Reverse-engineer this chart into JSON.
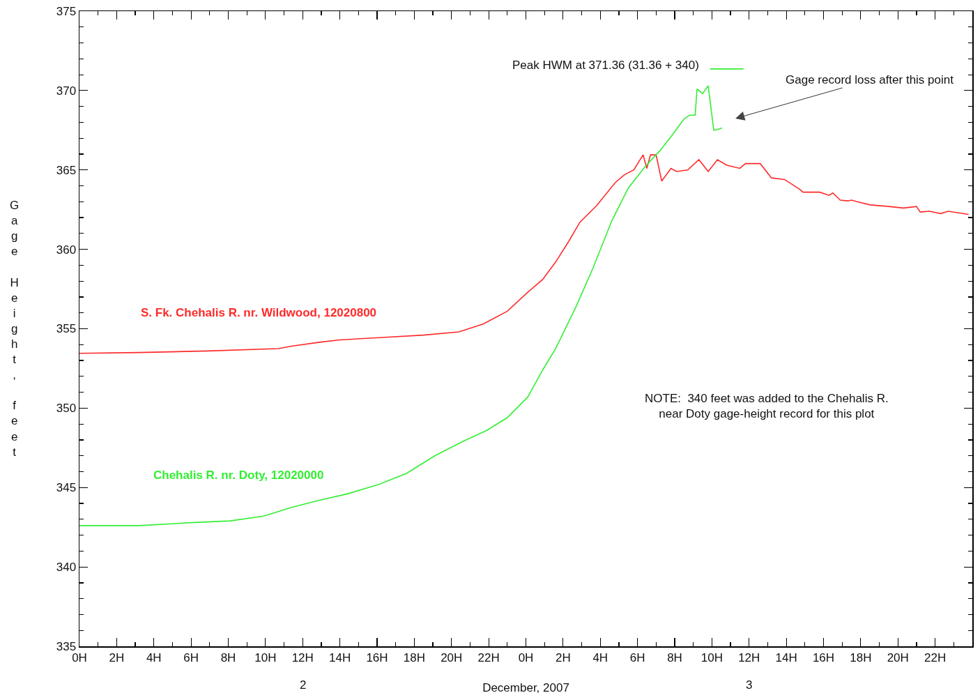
{
  "chart_data": {
    "type": "line",
    "xlabel": "December, 2007",
    "ylabel": "Gage Height, feet",
    "xlim": [
      "2007-12-02T00:00",
      "2007-12-04T00:00"
    ],
    "ylim": [
      335,
      375
    ],
    "xticks": [
      {
        "value": "2007-12-02T00:00",
        "label": "0H"
      },
      {
        "value": "2007-12-02T02:00",
        "label": "2H"
      },
      {
        "value": "2007-12-02T04:00",
        "label": "4H"
      },
      {
        "value": "2007-12-02T06:00",
        "label": "6H"
      },
      {
        "value": "2007-12-02T08:00",
        "label": "8H"
      },
      {
        "value": "2007-12-02T10:00",
        "label": "10H"
      },
      {
        "value": "2007-12-02T12:00",
        "label": "12H"
      },
      {
        "value": "2007-12-02T14:00",
        "label": "14H"
      },
      {
        "value": "2007-12-02T16:00",
        "label": "16H"
      },
      {
        "value": "2007-12-02T18:00",
        "label": "18H"
      },
      {
        "value": "2007-12-02T20:00",
        "label": "20H"
      },
      {
        "value": "2007-12-02T22:00",
        "label": "22H"
      },
      {
        "value": "2007-12-03T00:00",
        "label": "0H"
      },
      {
        "value": "2007-12-03T02:00",
        "label": "2H"
      },
      {
        "value": "2007-12-03T04:00",
        "label": "4H"
      },
      {
        "value": "2007-12-03T06:00",
        "label": "6H"
      },
      {
        "value": "2007-12-03T08:00",
        "label": "8H"
      },
      {
        "value": "2007-12-03T10:00",
        "label": "10H"
      },
      {
        "value": "2007-12-03T12:00",
        "label": "12H"
      },
      {
        "value": "2007-12-03T14:00",
        "label": "14H"
      },
      {
        "value": "2007-12-03T16:00",
        "label": "16H"
      },
      {
        "value": "2007-12-03T18:00",
        "label": "18H"
      },
      {
        "value": "2007-12-03T20:00",
        "label": "20H"
      },
      {
        "value": "2007-12-03T22:00",
        "label": "22H"
      }
    ],
    "yticks": [
      335,
      340,
      345,
      350,
      355,
      360,
      365,
      370,
      375
    ],
    "grid": false,
    "legend": false,
    "marker": "none",
    "line_style": "solid",
    "series": [
      {
        "name": "S. Fk. Chehalis R. nr. Wildwood, 12020800",
        "color": "#ff2a2a",
        "x": [
          "2007-12-02T00:00",
          "2007-12-02T03:12",
          "2007-12-02T06:54",
          "2007-12-02T10:42",
          "2007-12-02T11:24",
          "2007-12-02T12:54",
          "2007-12-02T14:00",
          "2007-12-02T16:18",
          "2007-12-02T18:30",
          "2007-12-02T20:24",
          "2007-12-02T21:42",
          "2007-12-02T23:00",
          "2007-12-03T00:06",
          "2007-12-03T00:54",
          "2007-12-03T01:36",
          "2007-12-03T02:18",
          "2007-12-03T02:54",
          "2007-12-03T03:48",
          "2007-12-03T04:48",
          "2007-12-03T05:18",
          "2007-12-03T05:48",
          "2007-12-03T06:18",
          "2007-12-03T06:30",
          "2007-12-03T06:42",
          "2007-12-03T07:00",
          "2007-12-03T07:18",
          "2007-12-03T07:48",
          "2007-12-03T08:06",
          "2007-12-03T08:42",
          "2007-12-03T09:18",
          "2007-12-03T09:48",
          "2007-12-03T10:18",
          "2007-12-03T10:48",
          "2007-12-03T11:30",
          "2007-12-03T11:48",
          "2007-12-03T12:36",
          "2007-12-03T13:12",
          "2007-12-03T13:54",
          "2007-12-03T14:42",
          "2007-12-03T14:54",
          "2007-12-03T15:48",
          "2007-12-03T16:18",
          "2007-12-03T16:30",
          "2007-12-03T16:54",
          "2007-12-03T17:18",
          "2007-12-03T17:30",
          "2007-12-03T17:48",
          "2007-12-03T18:30",
          "2007-12-03T19:30",
          "2007-12-03T20:18",
          "2007-12-03T21:00",
          "2007-12-03T21:12",
          "2007-12-03T21:42",
          "2007-12-03T22:18",
          "2007-12-03T22:42",
          "2007-12-03T23:48"
        ],
        "values": [
          353.45,
          353.5,
          353.6,
          353.75,
          353.9,
          354.15,
          354.3,
          354.45,
          354.6,
          354.8,
          355.3,
          356.1,
          357.3,
          358.1,
          359.2,
          360.5,
          361.7,
          362.75,
          364.2,
          364.7,
          365.0,
          365.95,
          365.1,
          365.95,
          365.95,
          364.3,
          365.1,
          364.9,
          365.0,
          365.65,
          364.9,
          365.65,
          365.3,
          365.1,
          365.4,
          365.4,
          364.5,
          364.4,
          363.8,
          363.6,
          363.6,
          363.4,
          363.55,
          363.1,
          363.05,
          363.1,
          363.0,
          362.8,
          362.7,
          362.6,
          362.7,
          362.35,
          362.4,
          362.25,
          362.4,
          362.2
        ]
      },
      {
        "name": "Chehalis R. nr. Doty, 12020000",
        "color": "#33ee33",
        "x": [
          "2007-12-02T00:00",
          "2007-12-02T03:12",
          "2007-12-02T06:12",
          "2007-12-02T08:06",
          "2007-12-02T09:54",
          "2007-12-02T11:24",
          "2007-12-02T12:54",
          "2007-12-02T14:24",
          "2007-12-02T16:06",
          "2007-12-02T17:36",
          "2007-12-02T19:06",
          "2007-12-02T20:36",
          "2007-12-02T21:54",
          "2007-12-02T23:00",
          "2007-12-03T00:06",
          "2007-12-03T00:54",
          "2007-12-03T01:36",
          "2007-12-03T02:42",
          "2007-12-03T03:36",
          "2007-12-03T04:36",
          "2007-12-03T05:30",
          "2007-12-03T06:24",
          "2007-12-03T07:12",
          "2007-12-03T07:48",
          "2007-12-03T08:30",
          "2007-12-03T08:48",
          "2007-12-03T09:06",
          "2007-12-03T09:12",
          "2007-12-03T09:30",
          "2007-12-03T09:48",
          "2007-12-03T10:06",
          "2007-12-03T10:18",
          "2007-12-03T10:33"
        ],
        "values": [
          342.6,
          342.6,
          342.8,
          342.9,
          343.2,
          343.75,
          344.2,
          344.6,
          345.2,
          345.9,
          347.0,
          347.9,
          348.6,
          349.4,
          350.7,
          352.4,
          353.75,
          356.4,
          358.8,
          361.75,
          363.85,
          365.2,
          366.2,
          367.1,
          368.2,
          368.45,
          368.45,
          370.1,
          369.8,
          370.3,
          367.5,
          367.55,
          367.65
        ]
      },
      {
        "color": "#33ee33",
        "x": [
          "2007-12-03T09:54",
          "2007-12-03T11:42"
        ],
        "values": [
          371.36,
          371.36
        ]
      }
    ],
    "annotations": [
      {
        "text": "Peak HWM at 371.36 (31.36 + 340)",
        "x": "2007-12-03T09:54",
        "y": 371.36
      },
      "Gage record loss after this point",
      "NOTE:  340 feet was added to the Chehalis R.\nnear Doty gage-height record for this plot",
      "2",
      "3"
    ]
  }
}
